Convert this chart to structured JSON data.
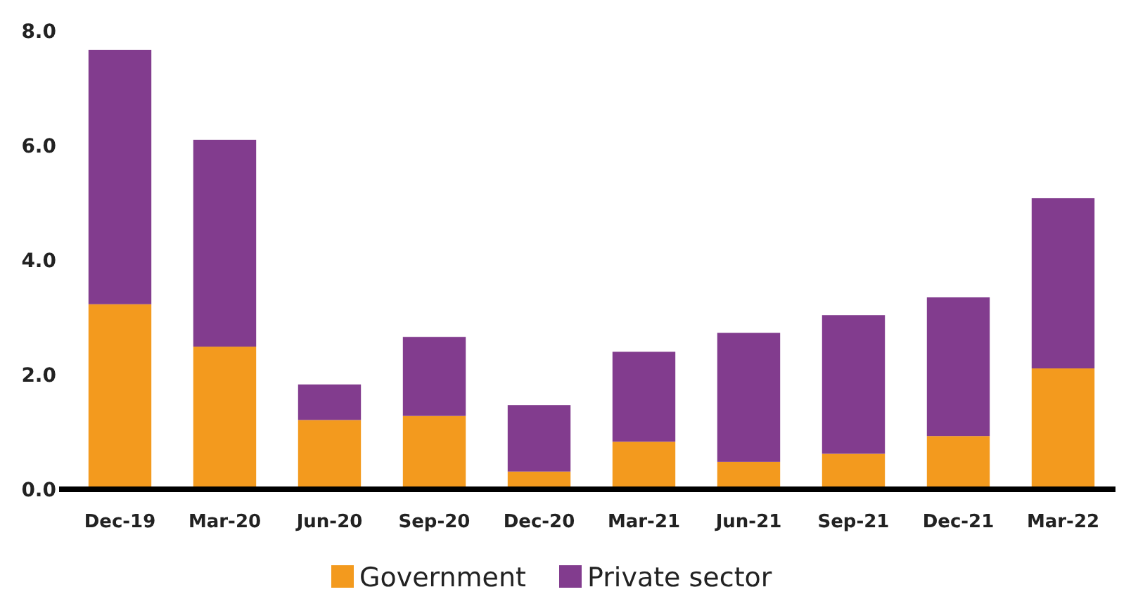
{
  "chart_data": {
    "type": "bar",
    "stacked": true,
    "categories": [
      "Dec-19",
      "Mar-20",
      "Jun-20",
      "Sep-20",
      "Dec-20",
      "Mar-21",
      "Jun-21",
      "Sep-21",
      "Dec-21",
      "Mar-22"
    ],
    "series": [
      {
        "name": "Government",
        "color": "#f39a1e",
        "values": [
          3.23,
          2.49,
          1.21,
          1.28,
          0.31,
          0.83,
          0.48,
          0.62,
          0.93,
          2.11
        ]
      },
      {
        "name": "Private sector",
        "color": "#823c8e",
        "values": [
          4.44,
          3.61,
          0.62,
          1.38,
          1.16,
          1.57,
          2.25,
          2.42,
          2.42,
          2.97
        ]
      }
    ],
    "ylim": [
      0,
      8
    ],
    "yticks": [
      {
        "value": 0,
        "label": "0.0"
      },
      {
        "value": 2,
        "label": "2.0"
      },
      {
        "value": 4,
        "label": "4.0"
      },
      {
        "value": 6,
        "label": "6.0"
      },
      {
        "value": 8,
        "label": "8.0"
      }
    ],
    "grid": false,
    "legend": "bottom"
  }
}
